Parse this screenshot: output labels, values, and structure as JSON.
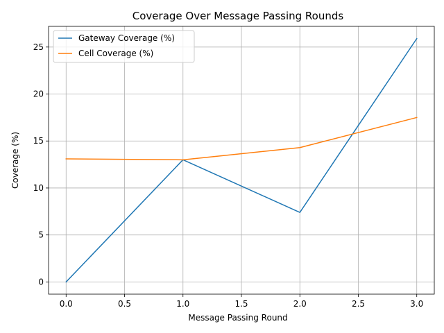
{
  "chart_data": {
    "type": "line",
    "title": "Coverage Over Message Passing Rounds",
    "xlabel": "Message Passing Round",
    "ylabel": "Coverage (%)",
    "x": [
      0,
      1,
      2,
      3
    ],
    "xlim": [
      -0.15,
      3.15
    ],
    "ylim": [
      -1.3,
      27.2
    ],
    "xticks": [
      0.0,
      0.5,
      1.0,
      1.5,
      2.0,
      2.5,
      3.0
    ],
    "xtick_labels": [
      "0.0",
      "0.5",
      "1.0",
      "1.5",
      "2.0",
      "2.5",
      "3.0"
    ],
    "yticks": [
      0,
      5,
      10,
      15,
      20,
      25
    ],
    "ytick_labels": [
      "0",
      "5",
      "10",
      "15",
      "20",
      "25"
    ],
    "grid": true,
    "legend_position": "top-left",
    "series": [
      {
        "name": "Gateway Coverage (%)",
        "color": "#1f77b4",
        "values": [
          0.0,
          13.0,
          7.4,
          25.9
        ]
      },
      {
        "name": "Cell Coverage (%)",
        "color": "#ff7f0e",
        "values": [
          13.1,
          13.0,
          14.3,
          17.5
        ]
      }
    ]
  }
}
